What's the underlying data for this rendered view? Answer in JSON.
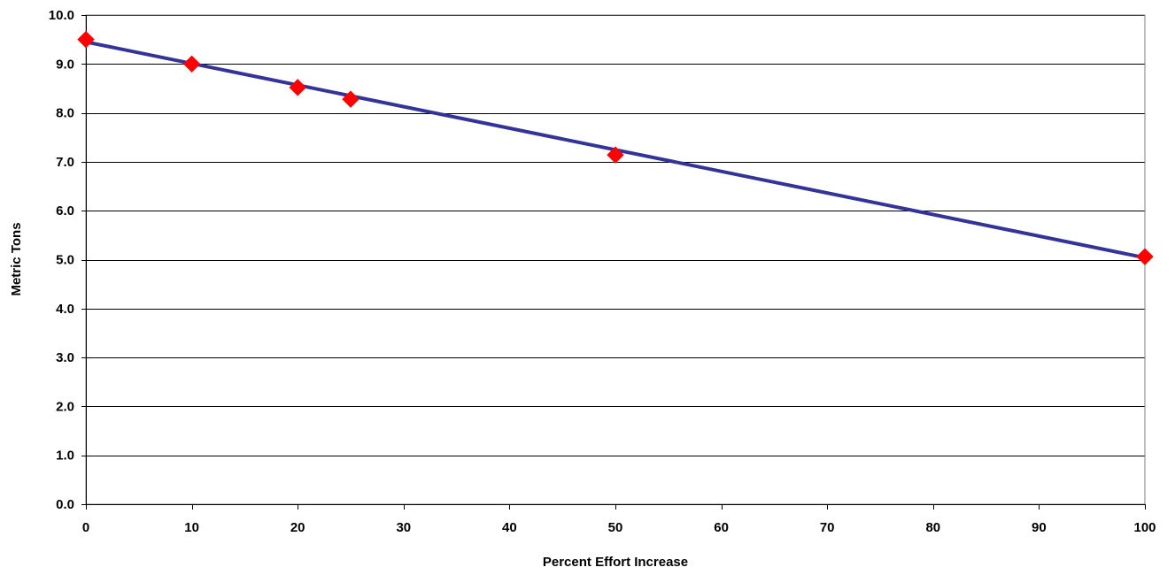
{
  "chart_data": {
    "type": "scatter",
    "title": "",
    "xlabel": "Percent Effort Increase",
    "ylabel": "Metric Tons",
    "xlim": [
      0,
      100
    ],
    "ylim": [
      0,
      10
    ],
    "x_ticks": [
      0,
      10,
      20,
      30,
      40,
      50,
      60,
      70,
      80,
      90,
      100
    ],
    "x_tick_labels": [
      "0",
      "10",
      "20",
      "30",
      "40",
      "50",
      "60",
      "70",
      "80",
      "90",
      "100"
    ],
    "y_ticks": [
      0,
      1,
      2,
      3,
      4,
      5,
      6,
      7,
      8,
      9,
      10
    ],
    "y_tick_labels": [
      "0.0",
      "1.0",
      "2.0",
      "3.0",
      "4.0",
      "5.0",
      "6.0",
      "7.0",
      "8.0",
      "9.0",
      "10.0"
    ],
    "grid": "horizontal",
    "legend": "none",
    "series": [
      {
        "kind": "points",
        "marker": "diamond",
        "color": "#ff0000",
        "x": [
          0,
          10,
          20,
          25,
          50,
          100
        ],
        "y": [
          9.5,
          9.0,
          8.52,
          8.28,
          7.14,
          5.06
        ]
      },
      {
        "kind": "trendline",
        "color": "#333399",
        "x": [
          0,
          100
        ],
        "y": [
          9.45,
          5.04
        ]
      }
    ]
  }
}
